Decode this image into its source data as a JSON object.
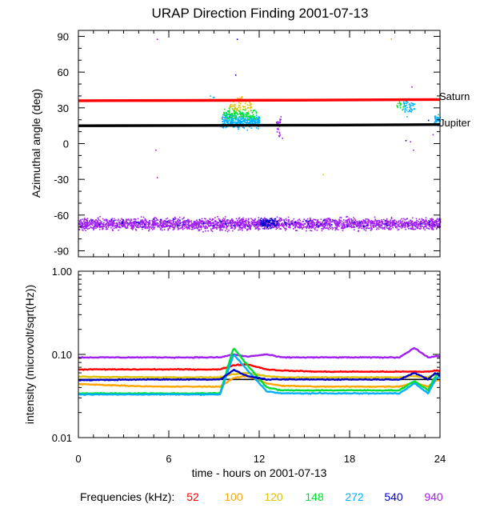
{
  "chart_data": [
    {
      "type": "scatter",
      "title": "URAP Direction Finding  2001-07-13",
      "ylabel": "Azimuthal angle (deg)",
      "xlabel": "",
      "xlim": [
        0,
        24
      ],
      "ylim": [
        -95,
        95
      ],
      "yticks": [
        90,
        60,
        30,
        0,
        -30,
        -60,
        -90
      ],
      "yticklabels": [
        "90",
        "60",
        "30",
        "0",
        "-30",
        "-60",
        "-90"
      ],
      "reference_lines": [
        {
          "name": "Saturn",
          "color": "#ff0000",
          "x": [
            0,
            16.5,
            24
          ],
          "y": [
            36,
            36.5,
            37
          ]
        },
        {
          "name": "Jupiter",
          "color": "#000000",
          "x": [
            0,
            16.5,
            24
          ],
          "y": [
            15,
            15.5,
            16
          ]
        }
      ],
      "series": [
        {
          "name": "940",
          "color": "#a020f0",
          "description": "dense band centred near -67 deg spanning 0-24 h",
          "center": -67,
          "spread": 7
        },
        {
          "name": "540",
          "color": "#0000cd",
          "description": "sparse points within the band, clustered 12-13 h",
          "center": -66,
          "spread": 6
        },
        {
          "name": "272",
          "color": "#00b0ff",
          "description": "burst 9.5-12 h near 20 deg; burst 21.5-22.3 h; burst 23.6-24 h",
          "center": 19,
          "spread": 8
        },
        {
          "name": "148",
          "color": "#00e030",
          "description": "burst 9.6-11.8 h near 25 deg",
          "center": 25,
          "spread": 7
        },
        {
          "name": "120",
          "color": "#e0c000",
          "description": "burst 10-11.5 h near 32 deg",
          "center": 32,
          "spread": 6
        },
        {
          "name": "100",
          "color": "#ffa500",
          "description": "few points 10.5-11 h near 38 deg",
          "center": 38,
          "spread": 4
        }
      ]
    },
    {
      "type": "line",
      "title": "",
      "ylabel": "intensity (microvolt/sqrt(Hz))",
      "xlabel": "time - hours on 2001-07-13",
      "xlim": [
        0,
        24
      ],
      "xticks": [
        0,
        6,
        12,
        18,
        24
      ],
      "xticklabels": [
        "0",
        "6",
        "12",
        "18",
        "24"
      ],
      "yscale": "log",
      "ylim": [
        0.01,
        1.0
      ],
      "yticks": [
        1.0,
        0.1,
        0.01
      ],
      "yticklabels": [
        "1.00",
        "0.10",
        "0.01"
      ],
      "reference_line": {
        "color": "#000000",
        "value": 0.05
      },
      "x": [
        0,
        5,
        9.4,
        10.3,
        11.2,
        12.5,
        13.5,
        16,
        18,
        21.3,
        22.3,
        23.2,
        23.7,
        24
      ],
      "series": [
        {
          "name": "940",
          "color": "#a020f0",
          "values": [
            0.092,
            0.092,
            0.092,
            0.1,
            0.094,
            0.1,
            0.092,
            0.092,
            0.092,
            0.092,
            0.12,
            0.092,
            0.095,
            0.094
          ]
        },
        {
          "name": "52",
          "color": "#ff0000",
          "values": [
            0.066,
            0.066,
            0.066,
            0.074,
            0.076,
            0.066,
            0.064,
            0.062,
            0.062,
            0.062,
            0.062,
            0.062,
            0.064,
            0.064
          ]
        },
        {
          "name": "100",
          "color": "#ffa500",
          "values": [
            0.044,
            0.041,
            0.041,
            0.052,
            0.055,
            0.045,
            0.042,
            0.041,
            0.041,
            0.041,
            0.046,
            0.041,
            0.048,
            0.05
          ]
        },
        {
          "name": "120",
          "color": "#e0c000",
          "values": [
            0.054,
            0.053,
            0.053,
            0.058,
            0.06,
            0.055,
            0.053,
            0.053,
            0.053,
            0.053,
            0.055,
            0.053,
            0.058,
            0.058
          ]
        },
        {
          "name": "148",
          "color": "#00e030",
          "values": [
            0.034,
            0.034,
            0.034,
            0.12,
            0.075,
            0.04,
            0.037,
            0.037,
            0.037,
            0.037,
            0.048,
            0.037,
            0.055,
            0.06
          ]
        },
        {
          "name": "272",
          "color": "#00b0ff",
          "values": [
            0.033,
            0.033,
            0.033,
            0.1,
            0.065,
            0.036,
            0.034,
            0.034,
            0.034,
            0.034,
            0.045,
            0.034,
            0.05,
            0.055
          ]
        },
        {
          "name": "540",
          "color": "#0000cd",
          "values": [
            0.049,
            0.05,
            0.05,
            0.065,
            0.055,
            0.05,
            0.05,
            0.05,
            0.05,
            0.05,
            0.06,
            0.05,
            0.06,
            0.055
          ]
        }
      ]
    }
  ],
  "legend": {
    "label": "Frequencies (kHz):",
    "entries": [
      {
        "label": "52",
        "color": "#ff0000"
      },
      {
        "label": "100",
        "color": "#ffa500"
      },
      {
        "label": "120",
        "color": "#e0c000"
      },
      {
        "label": "148",
        "color": "#00e030"
      },
      {
        "label": "272",
        "color": "#00b0ff"
      },
      {
        "label": "540",
        "color": "#0000cd"
      },
      {
        "label": "940",
        "color": "#a020f0"
      }
    ]
  }
}
